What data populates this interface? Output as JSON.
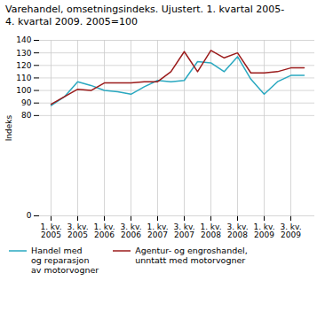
{
  "chart_data": {
    "type": "line",
    "title": "Varehandel, omsetningsindeks. Ujustert. 1. kvartal 2005-\n4. kvartal 2009.   2005=100",
    "y_label": "Indeks",
    "categories": [
      "1. kv.\n2005",
      null,
      "3. kv.\n2005",
      null,
      "1. kv.\n2006",
      null,
      "3. kv.\n2006",
      null,
      "1. kv.\n2007",
      null,
      "3. kv.\n2007",
      null,
      "1. kv.\n2008",
      null,
      "3. kv.\n2008",
      null,
      "1. kv.\n2009",
      null,
      "3. kv.\n2009",
      null
    ],
    "series": [
      {
        "name": "Handel med\nog reparasjon\nav motorvogner",
        "color": "#29A8C0",
        "values": [
          88,
          95,
          107,
          104,
          100,
          99,
          97,
          103,
          108,
          107,
          108,
          123,
          122,
          115,
          127,
          109,
          97,
          107,
          112,
          112
        ]
      },
      {
        "name": "Agentur- og engroshandel,\nunntatt med motorvogner",
        "color": "#9B1B1B",
        "values": [
          89,
          95,
          101,
          100,
          106,
          106,
          106,
          107,
          107,
          115,
          131,
          115,
          132,
          126,
          130,
          114,
          114,
          115,
          118,
          118
        ]
      }
    ],
    "ylim": [
      0,
      140
    ],
    "yticks": [
      0,
      80,
      90,
      100,
      110,
      120,
      130,
      140
    ],
    "grid": true,
    "legend": "bottom"
  }
}
